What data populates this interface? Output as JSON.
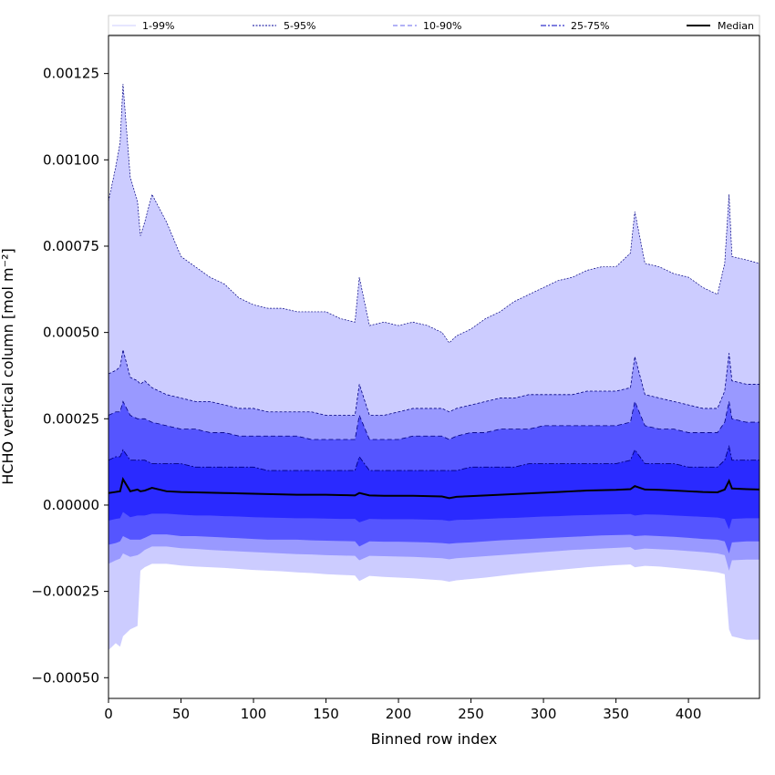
{
  "chart_data": {
    "type": "area",
    "title": "",
    "xlabel": "Binned row index",
    "ylabel": "HCHO vertical column [mol m⁻²]",
    "xlim": [
      0,
      449
    ],
    "ylim": [
      -0.00056,
      0.00136
    ],
    "xticks": [
      0,
      50,
      100,
      150,
      200,
      250,
      300,
      350,
      400
    ],
    "xtick_labels": [
      "0",
      "50",
      "100",
      "150",
      "200",
      "250",
      "300",
      "350",
      "400"
    ],
    "yticks": [
      -0.0005,
      -0.00025,
      0,
      0.00025,
      0.0005,
      0.00075,
      0.001,
      0.00125
    ],
    "ytick_labels": [
      "−0.00050",
      "−0.00025",
      "0.00000",
      "0.00025",
      "0.00050",
      "0.00075",
      "0.00100",
      "0.00125"
    ],
    "grid": false,
    "legend_position": "top",
    "legend": [
      {
        "label": "1-99%",
        "color": "#ccccff",
        "style": "solid-thin"
      },
      {
        "label": "5-95%",
        "color": "#000099",
        "style": "dotted"
      },
      {
        "label": "10-90%",
        "color": "#6666ee",
        "style": "dashed"
      },
      {
        "label": "25-75%",
        "color": "#3333cc",
        "style": "dashdot"
      },
      {
        "label": "Median",
        "color": "#000000",
        "style": "solid-thick"
      }
    ],
    "band_colors": {
      "p1_99": "#ccccff",
      "p5_95": "#9999ff",
      "p10_90": "#5555ff",
      "p25_75": "#2a2aff",
      "line": "#000080",
      "median": "#000000"
    },
    "x": [
      0,
      5,
      8,
      10,
      15,
      20,
      22,
      25,
      30,
      40,
      50,
      60,
      70,
      80,
      90,
      100,
      110,
      120,
      130,
      140,
      150,
      160,
      170,
      173,
      180,
      190,
      200,
      210,
      220,
      230,
      235,
      240,
      250,
      260,
      270,
      280,
      290,
      300,
      310,
      320,
      330,
      340,
      350,
      360,
      363,
      370,
      380,
      390,
      400,
      410,
      420,
      425,
      428,
      430,
      440,
      449
    ],
    "series": [
      {
        "name": "p99",
        "values": [
          0.00088,
          0.00098,
          0.00105,
          0.00122,
          0.00095,
          0.00088,
          0.00078,
          0.00082,
          0.0009,
          0.00082,
          0.00072,
          0.00069,
          0.00066,
          0.00064,
          0.0006,
          0.00058,
          0.00057,
          0.00057,
          0.00056,
          0.00056,
          0.00056,
          0.00054,
          0.00053,
          0.00066,
          0.00052,
          0.00053,
          0.00052,
          0.00053,
          0.00052,
          0.0005,
          0.00047,
          0.00049,
          0.00051,
          0.00054,
          0.00056,
          0.00059,
          0.00061,
          0.00063,
          0.00065,
          0.00066,
          0.00068,
          0.00069,
          0.00069,
          0.00073,
          0.00085,
          0.0007,
          0.00069,
          0.00067,
          0.00066,
          0.00063,
          0.00061,
          0.0007,
          0.0009,
          0.00072,
          0.00071,
          0.0007
        ]
      },
      {
        "name": "p95",
        "values": [
          0.00038,
          0.00039,
          0.0004,
          0.00045,
          0.00037,
          0.00036,
          0.00035,
          0.00036,
          0.00034,
          0.00032,
          0.00031,
          0.0003,
          0.0003,
          0.00029,
          0.00028,
          0.00028,
          0.00027,
          0.00027,
          0.00027,
          0.00027,
          0.00026,
          0.00026,
          0.00026,
          0.00035,
          0.00026,
          0.00026,
          0.00027,
          0.00028,
          0.00028,
          0.00028,
          0.00027,
          0.00028,
          0.00029,
          0.0003,
          0.00031,
          0.00031,
          0.00032,
          0.00032,
          0.00032,
          0.00032,
          0.00033,
          0.00033,
          0.00033,
          0.00034,
          0.00043,
          0.00032,
          0.00031,
          0.0003,
          0.00029,
          0.00028,
          0.00028,
          0.00033,
          0.00044,
          0.00036,
          0.00035,
          0.00035
        ]
      },
      {
        "name": "p90",
        "values": [
          0.00026,
          0.00027,
          0.00027,
          0.0003,
          0.00026,
          0.00025,
          0.00025,
          0.00025,
          0.00024,
          0.00023,
          0.00022,
          0.00022,
          0.00021,
          0.00021,
          0.0002,
          0.0002,
          0.0002,
          0.0002,
          0.0002,
          0.00019,
          0.00019,
          0.00019,
          0.00019,
          0.00026,
          0.00019,
          0.00019,
          0.00019,
          0.0002,
          0.0002,
          0.0002,
          0.00019,
          0.0002,
          0.00021,
          0.00021,
          0.00022,
          0.00022,
          0.00022,
          0.00023,
          0.00023,
          0.00023,
          0.00023,
          0.00023,
          0.00023,
          0.00024,
          0.0003,
          0.00023,
          0.00022,
          0.00022,
          0.00021,
          0.00021,
          0.00021,
          0.00024,
          0.0003,
          0.00025,
          0.00024,
          0.00024
        ]
      },
      {
        "name": "p75",
        "values": [
          0.00013,
          0.00014,
          0.00014,
          0.00016,
          0.00013,
          0.00013,
          0.00013,
          0.00013,
          0.00012,
          0.00012,
          0.00012,
          0.00011,
          0.00011,
          0.00011,
          0.00011,
          0.00011,
          0.0001,
          0.0001,
          0.0001,
          0.0001,
          0.0001,
          0.0001,
          0.0001,
          0.00014,
          0.0001,
          0.0001,
          0.0001,
          0.0001,
          0.0001,
          0.0001,
          0.0001,
          0.0001,
          0.00011,
          0.00011,
          0.00011,
          0.00011,
          0.00012,
          0.00012,
          0.00012,
          0.00012,
          0.00012,
          0.00012,
          0.00012,
          0.00013,
          0.00016,
          0.00012,
          0.00012,
          0.00012,
          0.00011,
          0.00011,
          0.00011,
          0.00013,
          0.00017,
          0.00013,
          0.00013,
          0.00013
        ]
      },
      {
        "name": "median",
        "values": [
          3.5e-05,
          3.8e-05,
          4e-05,
          7.5e-05,
          4e-05,
          4.5e-05,
          4e-05,
          4.2e-05,
          5e-05,
          4e-05,
          3.8e-05,
          3.7e-05,
          3.6e-05,
          3.5e-05,
          3.4e-05,
          3.3e-05,
          3.2e-05,
          3.1e-05,
          3e-05,
          3e-05,
          3e-05,
          2.9e-05,
          2.8e-05,
          3.5e-05,
          2.8e-05,
          2.7e-05,
          2.7e-05,
          2.7e-05,
          2.6e-05,
          2.5e-05,
          2e-05,
          2.4e-05,
          2.6e-05,
          2.8e-05,
          3e-05,
          3.2e-05,
          3.4e-05,
          3.6e-05,
          3.8e-05,
          4e-05,
          4.2e-05,
          4.3e-05,
          4.4e-05,
          4.6e-05,
          5.5e-05,
          4.5e-05,
          4.4e-05,
          4.2e-05,
          4e-05,
          3.8e-05,
          3.7e-05,
          4.5e-05,
          7e-05,
          4.8e-05,
          4.6e-05,
          4.5e-05
        ]
      },
      {
        "name": "p25",
        "values": [
          -4.5e-05,
          -4e-05,
          -3.8e-05,
          -2e-05,
          -3.5e-05,
          -3e-05,
          -3e-05,
          -3e-05,
          -2.5e-05,
          -2.5e-05,
          -2.8e-05,
          -3e-05,
          -3e-05,
          -3.2e-05,
          -3.3e-05,
          -3.5e-05,
          -3.6e-05,
          -3.7e-05,
          -3.8e-05,
          -3.8e-05,
          -3.9e-05,
          -4e-05,
          -4e-05,
          -5e-05,
          -4e-05,
          -4.1e-05,
          -4.1e-05,
          -4.1e-05,
          -4.2e-05,
          -4.3e-05,
          -4.6e-05,
          -4.3e-05,
          -4.2e-05,
          -4e-05,
          -3.8e-05,
          -3.7e-05,
          -3.5e-05,
          -3.3e-05,
          -3.2e-05,
          -3e-05,
          -2.9e-05,
          -2.8e-05,
          -2.7e-05,
          -2.6e-05,
          -3e-05,
          -2.7e-05,
          -2.8e-05,
          -3e-05,
          -3.2e-05,
          -3.4e-05,
          -3.6e-05,
          -4e-05,
          -7e-05,
          -4e-05,
          -3.8e-05,
          -3.8e-05
        ]
      },
      {
        "name": "p10",
        "values": [
          -0.000115,
          -0.00011,
          -0.000105,
          -9e-05,
          -0.0001,
          -0.0001,
          -0.0001,
          -9.5e-05,
          -8.5e-05,
          -8.5e-05,
          -9e-05,
          -9e-05,
          -9.2e-05,
          -9.4e-05,
          -9.6e-05,
          -9.8e-05,
          -0.0001,
          -0.0001,
          -0.0001,
          -0.000102,
          -0.000103,
          -0.000104,
          -0.000105,
          -0.00012,
          -0.000105,
          -0.000106,
          -0.000106,
          -0.000107,
          -0.000108,
          -0.00011,
          -0.000112,
          -0.00011,
          -0.000108,
          -0.000105,
          -0.000102,
          -0.0001,
          -9.8e-05,
          -9.6e-05,
          -9.4e-05,
          -9.2e-05,
          -9e-05,
          -8.8e-05,
          -8.7e-05,
          -8.6e-05,
          -9e-05,
          -8.8e-05,
          -9e-05,
          -9.2e-05,
          -9.5e-05,
          -9.8e-05,
          -0.0001,
          -0.000105,
          -0.00014,
          -0.000108,
          -0.000105,
          -0.000105
        ]
      },
      {
        "name": "p5",
        "values": [
          -0.00017,
          -0.00016,
          -0.000155,
          -0.00014,
          -0.00015,
          -0.000145,
          -0.00014,
          -0.00013,
          -0.00012,
          -0.00012,
          -0.000125,
          -0.000127,
          -0.00013,
          -0.000132,
          -0.000134,
          -0.000136,
          -0.000138,
          -0.00014,
          -0.000142,
          -0.000143,
          -0.000145,
          -0.000146,
          -0.000147,
          -0.00016,
          -0.000147,
          -0.000148,
          -0.000149,
          -0.00015,
          -0.000152,
          -0.000154,
          -0.000157,
          -0.000154,
          -0.000151,
          -0.000148,
          -0.000145,
          -0.000142,
          -0.000139,
          -0.000136,
          -0.000133,
          -0.00013,
          -0.000128,
          -0.000126,
          -0.000124,
          -0.000122,
          -0.00013,
          -0.000126,
          -0.000128,
          -0.00013,
          -0.000133,
          -0.000136,
          -0.00014,
          -0.000145,
          -0.00019,
          -0.00016,
          -0.000158,
          -0.000158
        ]
      },
      {
        "name": "p1",
        "values": [
          -0.00042,
          -0.0004,
          -0.00041,
          -0.00038,
          -0.00036,
          -0.00035,
          -0.00019,
          -0.00018,
          -0.00017,
          -0.00017,
          -0.000175,
          -0.000178,
          -0.00018,
          -0.000182,
          -0.000185,
          -0.000188,
          -0.00019,
          -0.000192,
          -0.000195,
          -0.000197,
          -0.0002,
          -0.000202,
          -0.000204,
          -0.00022,
          -0.000205,
          -0.000208,
          -0.00021,
          -0.000212,
          -0.000215,
          -0.000218,
          -0.000222,
          -0.000218,
          -0.000214,
          -0.00021,
          -0.000205,
          -0.0002,
          -0.000196,
          -0.000192,
          -0.000188,
          -0.000184,
          -0.00018,
          -0.000177,
          -0.000174,
          -0.000172,
          -0.00018,
          -0.000176,
          -0.000178,
          -0.000182,
          -0.000186,
          -0.00019,
          -0.000195,
          -0.0002,
          -0.00036,
          -0.00038,
          -0.00039,
          -0.00039
        ]
      }
    ]
  }
}
